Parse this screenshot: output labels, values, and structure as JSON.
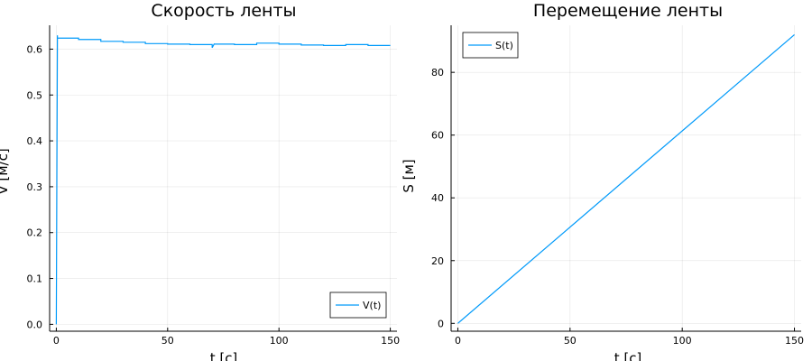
{
  "chart_data": [
    {
      "type": "line",
      "title": "Скорость ленты",
      "xlabel": "t [c]",
      "ylabel": "V [м/с]",
      "xlim": [
        -3,
        153
      ],
      "ylim": [
        -0.015,
        0.652
      ],
      "xticks": [
        0,
        50,
        100,
        150
      ],
      "yticks": [
        0.0,
        0.1,
        0.2,
        0.3,
        0.4,
        0.5,
        0.6
      ],
      "ytick_labels": [
        "0.0",
        "0.1",
        "0.2",
        "0.3",
        "0.4",
        "0.5",
        "0.6"
      ],
      "grid": true,
      "legend_position": "bottom-right",
      "series": [
        {
          "name": "V(t)",
          "color": "#009AFA",
          "x": [
            0,
            0.5,
            0.5,
            10,
            10,
            20,
            20,
            30,
            30,
            40,
            40,
            50,
            50,
            60,
            60,
            70,
            70,
            71,
            71,
            80,
            80,
            90,
            90,
            100,
            100,
            110,
            110,
            120,
            120,
            130,
            130,
            140,
            140,
            150
          ],
          "y": [
            0.0,
            0.63,
            0.624,
            0.624,
            0.621,
            0.621,
            0.617,
            0.617,
            0.615,
            0.615,
            0.612,
            0.612,
            0.611,
            0.611,
            0.61,
            0.61,
            0.603,
            0.612,
            0.611,
            0.611,
            0.61,
            0.61,
            0.613,
            0.613,
            0.611,
            0.611,
            0.609,
            0.609,
            0.608,
            0.608,
            0.61,
            0.61,
            0.608,
            0.608
          ]
        }
      ]
    },
    {
      "type": "line",
      "title": "Перемещение ленты",
      "xlabel": "t [c]",
      "ylabel": "S [м]",
      "xlim": [
        -3,
        153
      ],
      "ylim": [
        -2.5,
        95
      ],
      "xticks": [
        0,
        50,
        100,
        150
      ],
      "yticks": [
        0,
        20,
        40,
        60,
        80
      ],
      "ytick_labels": [
        "0",
        "20",
        "40",
        "60",
        "80"
      ],
      "grid": true,
      "legend_position": "top-left",
      "series": [
        {
          "name": "S(t)",
          "color": "#009AFA",
          "x": [
            0,
            150
          ],
          "y": [
            0,
            92
          ]
        }
      ]
    }
  ]
}
